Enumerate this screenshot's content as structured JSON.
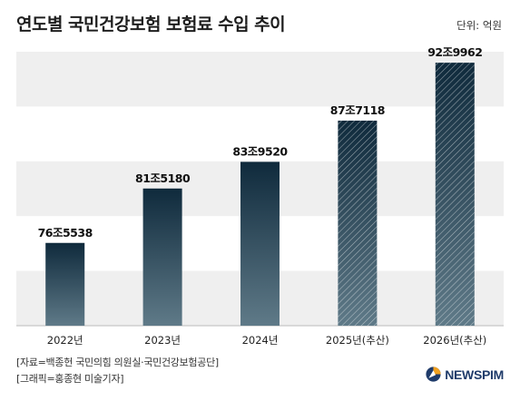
{
  "header": {
    "title": "연도별 국민건강보험 보험료 수입 추이",
    "unit": "단위: 억원"
  },
  "chart_data": {
    "type": "bar",
    "categories": [
      "2022년",
      "2023년",
      "2024년",
      "2025년(추산)",
      "2026년(추산)"
    ],
    "values": [
      765538,
      815180,
      839520,
      877118,
      929962
    ],
    "value_labels": [
      "76조5538",
      "81조5180",
      "83조9520",
      "87조7118",
      "92조9962"
    ],
    "estimated": [
      false,
      false,
      false,
      true,
      true
    ],
    "ylim": [
      690000,
      940000
    ],
    "grid": "alternating horizontal bands",
    "colors": {
      "bar_top": "#0f2a3c",
      "bar_bottom": "#5f7a88",
      "hatch": "#ffffff",
      "band": "#efefef"
    }
  },
  "footer": {
    "source": "[자료=백종헌 국민의힘 의원실·국민건강보험공단]",
    "graphic": "[그래픽=홍종현 미술기자]",
    "logo_text": "NEWSPIM",
    "logo_icon": "newspim-logo-icon"
  }
}
